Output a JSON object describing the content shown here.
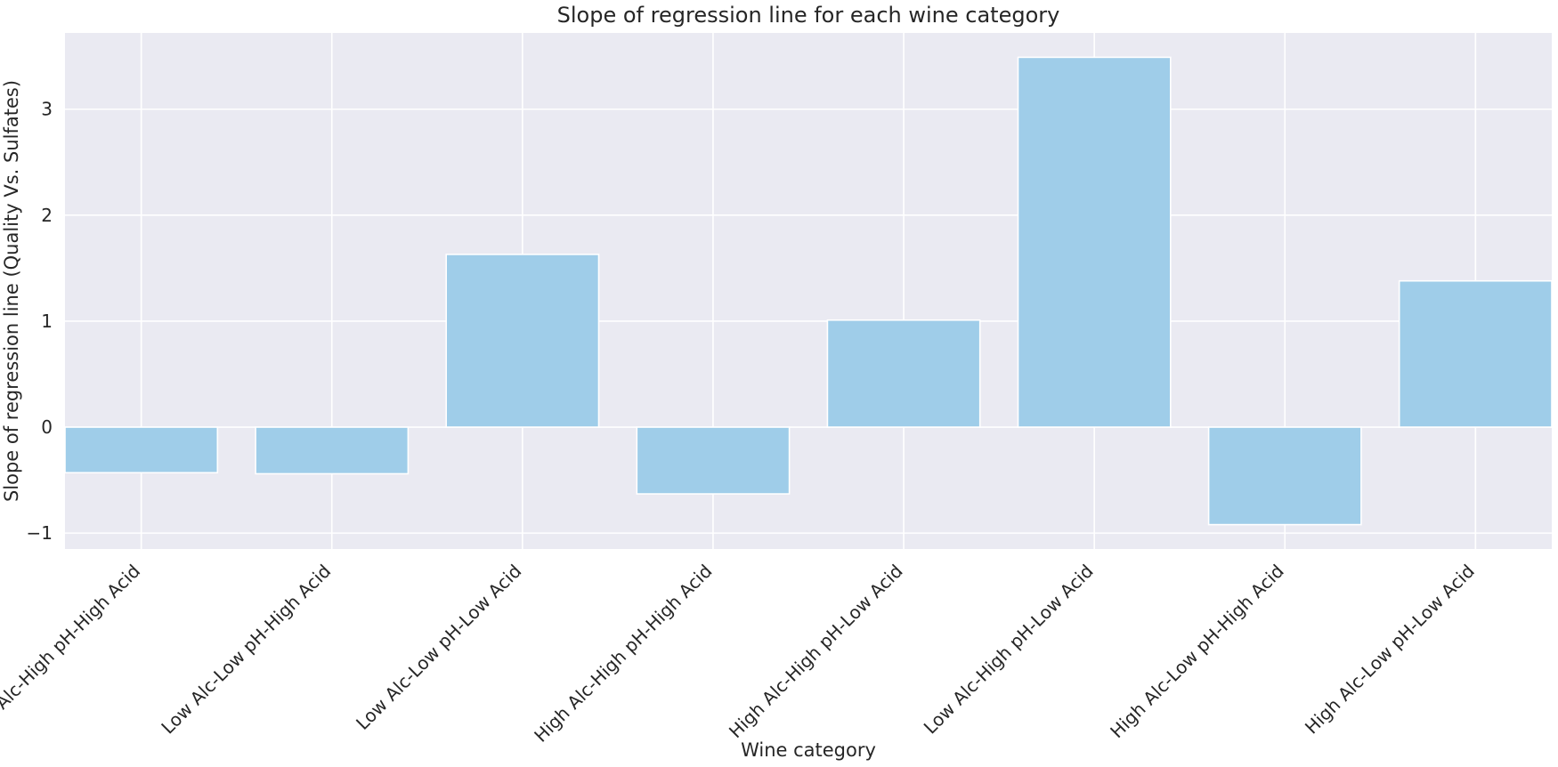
{
  "chart_data": {
    "type": "bar",
    "title": "Slope of regression line for each wine category",
    "xlabel": "Wine category",
    "ylabel": "Slope of regression line (Quality Vs. Sulfates)",
    "categories": [
      "Low Alc-High pH-High Acid",
      "Low Alc-Low pH-High Acid",
      "Low Alc-Low pH-Low Acid",
      "High Alc-High pH-High Acid",
      "High Alc-High pH-Low Acid",
      "Low Alc-High pH-Low Acid",
      "High Alc-Low pH-High Acid",
      "High Alc-Low pH-Low Acid"
    ],
    "values": [
      -0.43,
      -0.44,
      1.63,
      -0.63,
      1.01,
      3.49,
      -0.92,
      1.38
    ],
    "ylim": [
      -1.15,
      3.72
    ],
    "yticks": [
      -1,
      0,
      1,
      2,
      3
    ],
    "ytick_labels": [
      "−1",
      "0",
      "1",
      "2",
      "3"
    ],
    "grid": true,
    "bar_color": "#9fcde9",
    "background_color": "#eaeaf2",
    "grid_color": "#ffffff"
  }
}
